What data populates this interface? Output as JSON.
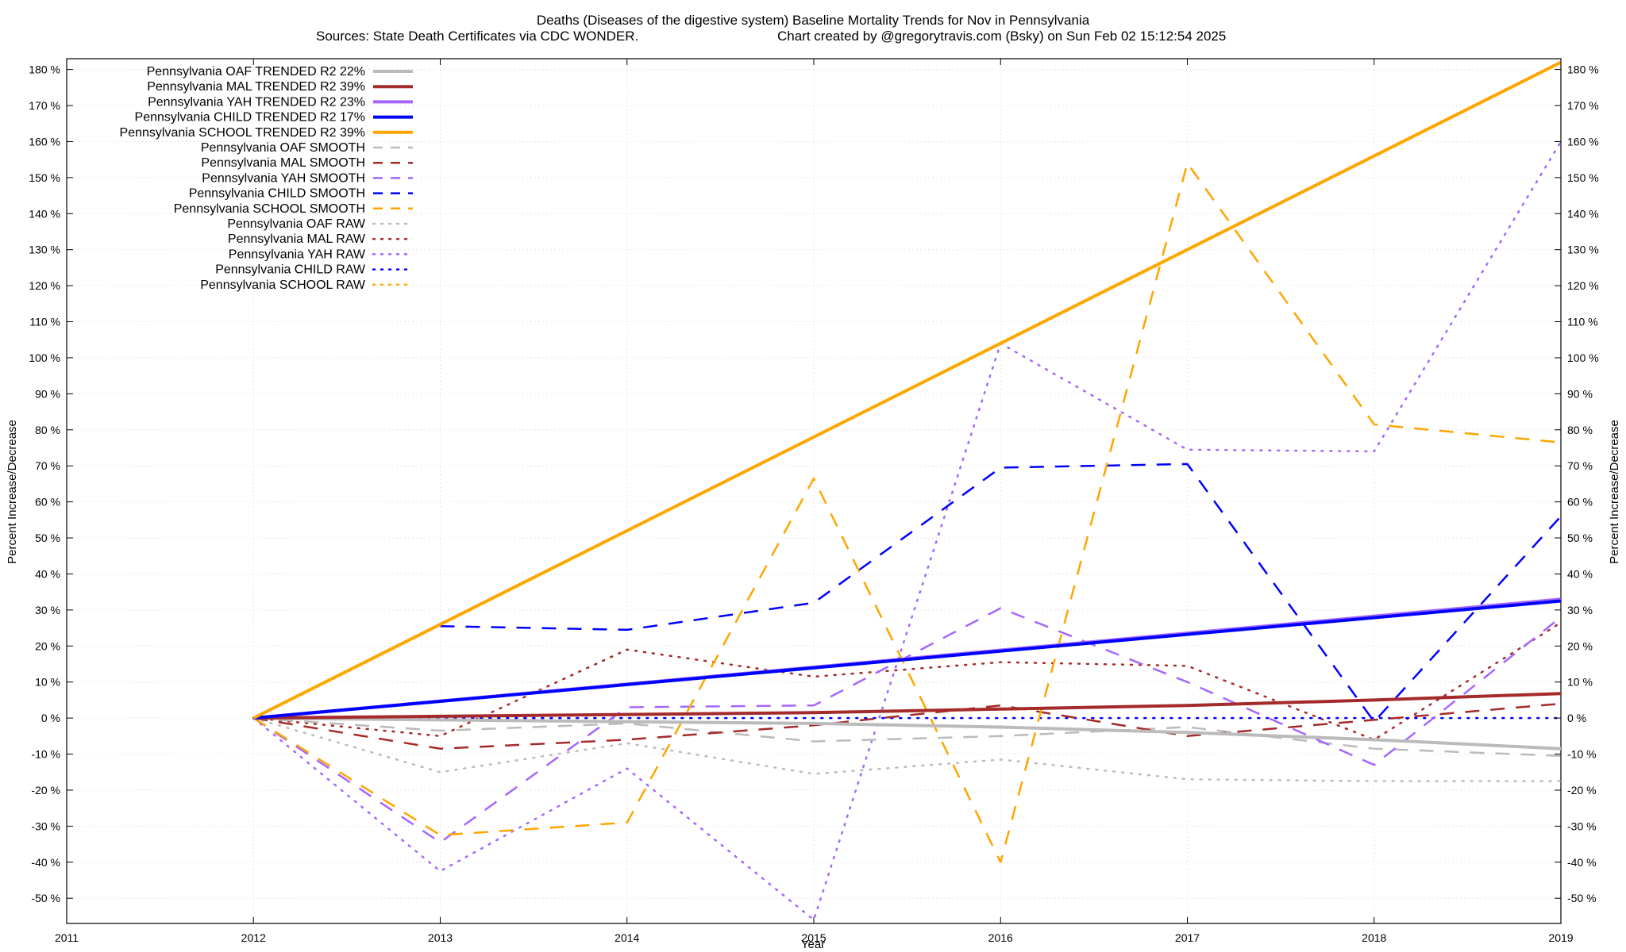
{
  "chart_data": {
    "type": "line",
    "title": "Deaths (Diseases of the digestive system)  Baseline Mortality Trends for Nov in Pennsylvania",
    "subtitle_left": "Sources: State Death Certificates via CDC WONDER.",
    "subtitle_right": "Chart created by @gregorytravis.com (Bsky) on Sun Feb 02 15:12:54 2025",
    "xlabel": "Year",
    "ylabel": "Percent Increase/Decrease",
    "ylabel_right": "Percent Increase/Decrease",
    "xlim": [
      2011,
      2019
    ],
    "ylim": [
      -57,
      183
    ],
    "x_ticks": [
      2011,
      2012,
      2013,
      2014,
      2015,
      2016,
      2017,
      2018,
      2019
    ],
    "x_tick_labels": [
      "2011",
      "2012",
      "2013",
      "2014",
      "2015",
      "2016",
      "2017",
      "2018",
      "2019"
    ],
    "y_ticks": [
      -50,
      -40,
      -30,
      -20,
      -10,
      0,
      10,
      20,
      30,
      40,
      50,
      60,
      70,
      80,
      90,
      100,
      110,
      120,
      130,
      140,
      150,
      160,
      170,
      180
    ],
    "y_tick_labels": [
      "-50 %",
      "-40 %",
      "-30 %",
      "-20 %",
      "-10 %",
      "0 %",
      "10 %",
      "20 %",
      "30 %",
      "40 %",
      "50 %",
      "60 %",
      "70 %",
      "80 %",
      "90 %",
      "100 %",
      "110 %",
      "120 %",
      "130 %",
      "140 %",
      "150 %",
      "160 %",
      "170 %",
      "180 %"
    ],
    "grid": true,
    "legend_position": "top-left",
    "series": [
      {
        "name": "Pennsylvania OAF TRENDED R2  22%",
        "style": "solid",
        "color": "#bbbbbb",
        "x": [
          2012,
          2013,
          2014,
          2015,
          2016,
          2017,
          2018,
          2019
        ],
        "y": [
          0,
          -0.5,
          -1,
          -1.5,
          -2.5,
          -4,
          -6,
          -8.5
        ]
      },
      {
        "name": "Pennsylvania MAL TRENDED R2  39%",
        "style": "solid",
        "color": "#a52a2a",
        "x": [
          2012,
          2013,
          2014,
          2015,
          2016,
          2017,
          2018,
          2019
        ],
        "y": [
          0,
          0.5,
          1,
          1.5,
          2.5,
          3.5,
          5,
          6.8
        ]
      },
      {
        "name": "Pennsylvania YAH TRENDED R2  23%",
        "style": "solid",
        "color": "#a566ff",
        "x": [
          2012,
          2019
        ],
        "y": [
          0,
          33
        ]
      },
      {
        "name": "Pennsylvania CHILD TRENDED R2  17%",
        "style": "solid",
        "color": "#0000ff",
        "x": [
          2012,
          2019
        ],
        "y": [
          0,
          32.5
        ]
      },
      {
        "name": "Pennsylvania SCHOOL TRENDED R2  39%",
        "style": "solid",
        "color": "#ffa500",
        "x": [
          2012,
          2019
        ],
        "y": [
          0,
          182
        ]
      },
      {
        "name": "Pennsylvania OAF SMOOTH",
        "style": "dashed",
        "color": "#bbbbbb",
        "x": [
          2012,
          2013,
          2014,
          2015,
          2016,
          2017,
          2018,
          2019
        ],
        "y": [
          0,
          -3.5,
          -1.5,
          -6.5,
          -5,
          -2.5,
          -8.5,
          -10.5
        ]
      },
      {
        "name": "Pennsylvania MAL SMOOTH",
        "style": "dashed",
        "color": "#a52a2a",
        "x": [
          2012,
          2013,
          2014,
          2015,
          2016,
          2017,
          2018,
          2019
        ],
        "y": [
          0,
          -8.5,
          -6,
          -2,
          3.5,
          -5,
          -0.5,
          4
        ]
      },
      {
        "name": "Pennsylvania YAH SMOOTH",
        "style": "dashed",
        "color": "#a566ff",
        "x": [
          2012,
          2013,
          2014,
          2015,
          2016,
          2017,
          2018,
          2019
        ],
        "y": [
          0,
          -34.5,
          3,
          3.5,
          30.5,
          10,
          -13,
          28
        ]
      },
      {
        "name": "Pennsylvania CHILD SMOOTH",
        "style": "dashed",
        "color": "#0000ff",
        "x": [
          2013,
          2014,
          2015,
          2016,
          2017,
          2018,
          2019
        ],
        "y": [
          25.5,
          24.5,
          32,
          69.5,
          70.5,
          -1,
          56
        ]
      },
      {
        "name": "Pennsylvania SCHOOL SMOOTH",
        "style": "dashed",
        "color": "#ffa500",
        "x": [
          2012,
          2013,
          2014,
          2015,
          2016,
          2017,
          2018,
          2019
        ],
        "y": [
          0,
          -32.5,
          -29,
          66.5,
          -40,
          154,
          81.5,
          76.5
        ]
      },
      {
        "name": "Pennsylvania OAF RAW",
        "style": "dotted",
        "color": "#bbbbbb",
        "x": [
          2012,
          2013,
          2014,
          2015,
          2016,
          2017,
          2018,
          2019
        ],
        "y": [
          0,
          -15,
          -7,
          -15.5,
          -11.5,
          -17,
          -17.5,
          -17.5
        ]
      },
      {
        "name": "Pennsylvania MAL RAW",
        "style": "dotted",
        "color": "#a52a2a",
        "x": [
          2012,
          2013,
          2014,
          2015,
          2016,
          2017,
          2018,
          2019
        ],
        "y": [
          0,
          -5,
          19,
          11.5,
          15.5,
          14.5,
          -6,
          26.5
        ]
      },
      {
        "name": "Pennsylvania YAH RAW",
        "style": "dotted",
        "color": "#a566ff",
        "x": [
          2012,
          2013,
          2014,
          2015,
          2016,
          2017,
          2018,
          2019
        ],
        "y": [
          0,
          -42.5,
          -14,
          -56,
          104,
          74.5,
          74,
          160
        ]
      },
      {
        "name": "Pennsylvania CHILD RAW",
        "style": "dotted",
        "color": "#0000ff",
        "x": [
          2012,
          2013,
          2014,
          2015,
          2016,
          2017,
          2018,
          2019
        ],
        "y": [
          0,
          0,
          0,
          0,
          0,
          0,
          0,
          0
        ]
      },
      {
        "name": "Pennsylvania SCHOOL RAW",
        "style": "dotted",
        "color": "#ffa500",
        "x": [],
        "y": []
      }
    ]
  }
}
